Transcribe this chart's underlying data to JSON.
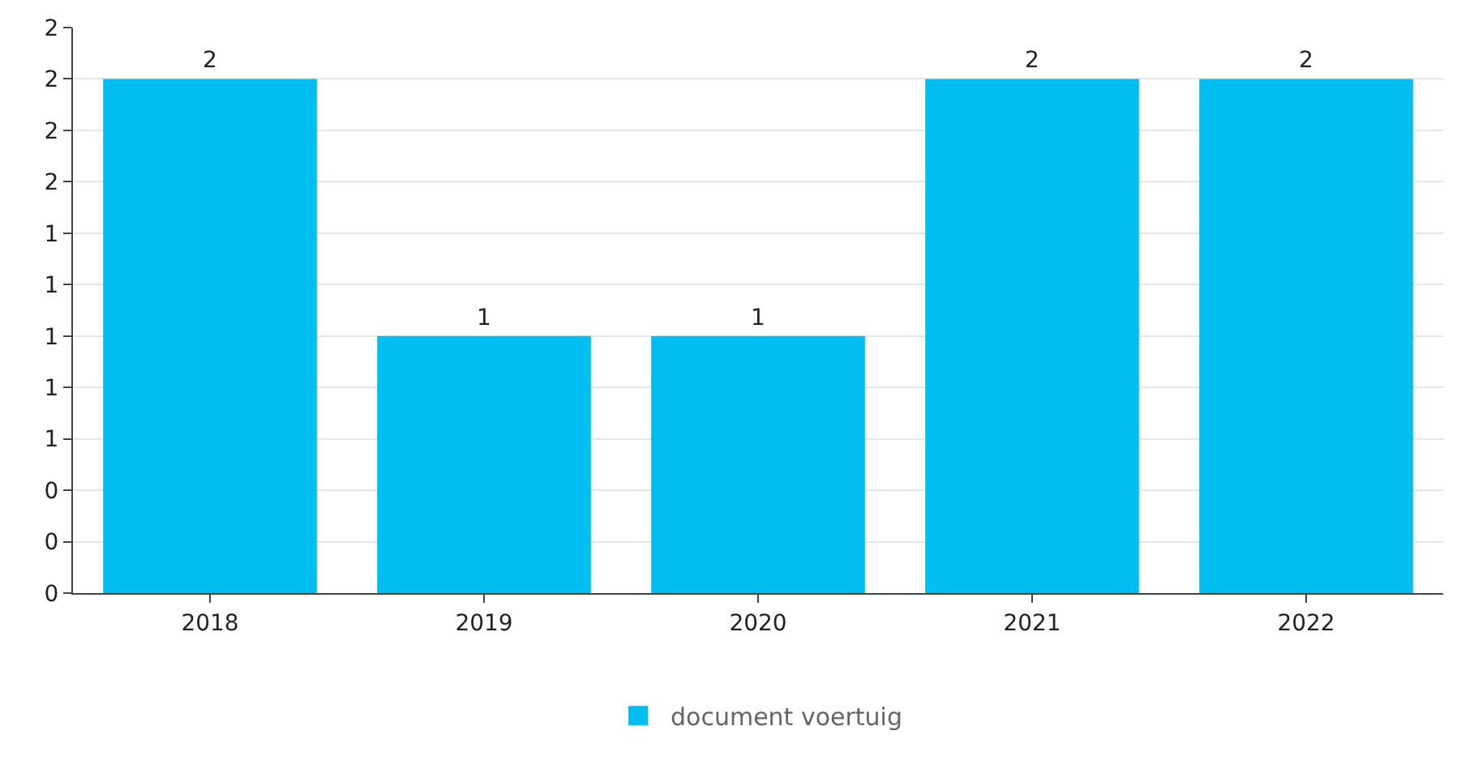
{
  "chart_data": {
    "type": "bar",
    "categories": [
      "2018",
      "2019",
      "2020",
      "2021",
      "2022"
    ],
    "series": [
      {
        "name": "document voertuig",
        "color": "#00bff0",
        "values": [
          2,
          1,
          1,
          2,
          2
        ]
      }
    ],
    "ylim": [
      0,
      2.2
    ],
    "yticks": [
      {
        "value": 0,
        "label": "0"
      },
      {
        "value": 0.2,
        "label": "0"
      },
      {
        "value": 0.4,
        "label": "0"
      },
      {
        "value": 0.6,
        "label": "1"
      },
      {
        "value": 0.8,
        "label": "1"
      },
      {
        "value": 1.0,
        "label": "1"
      },
      {
        "value": 1.2,
        "label": "1"
      },
      {
        "value": 1.4,
        "label": "1"
      },
      {
        "value": 1.6,
        "label": "2"
      },
      {
        "value": 1.8,
        "label": "2"
      },
      {
        "value": 2.0,
        "label": "2"
      },
      {
        "value": 2.2,
        "label": "2"
      }
    ],
    "grid": "y",
    "legend": "bottom",
    "data_labels": true
  }
}
